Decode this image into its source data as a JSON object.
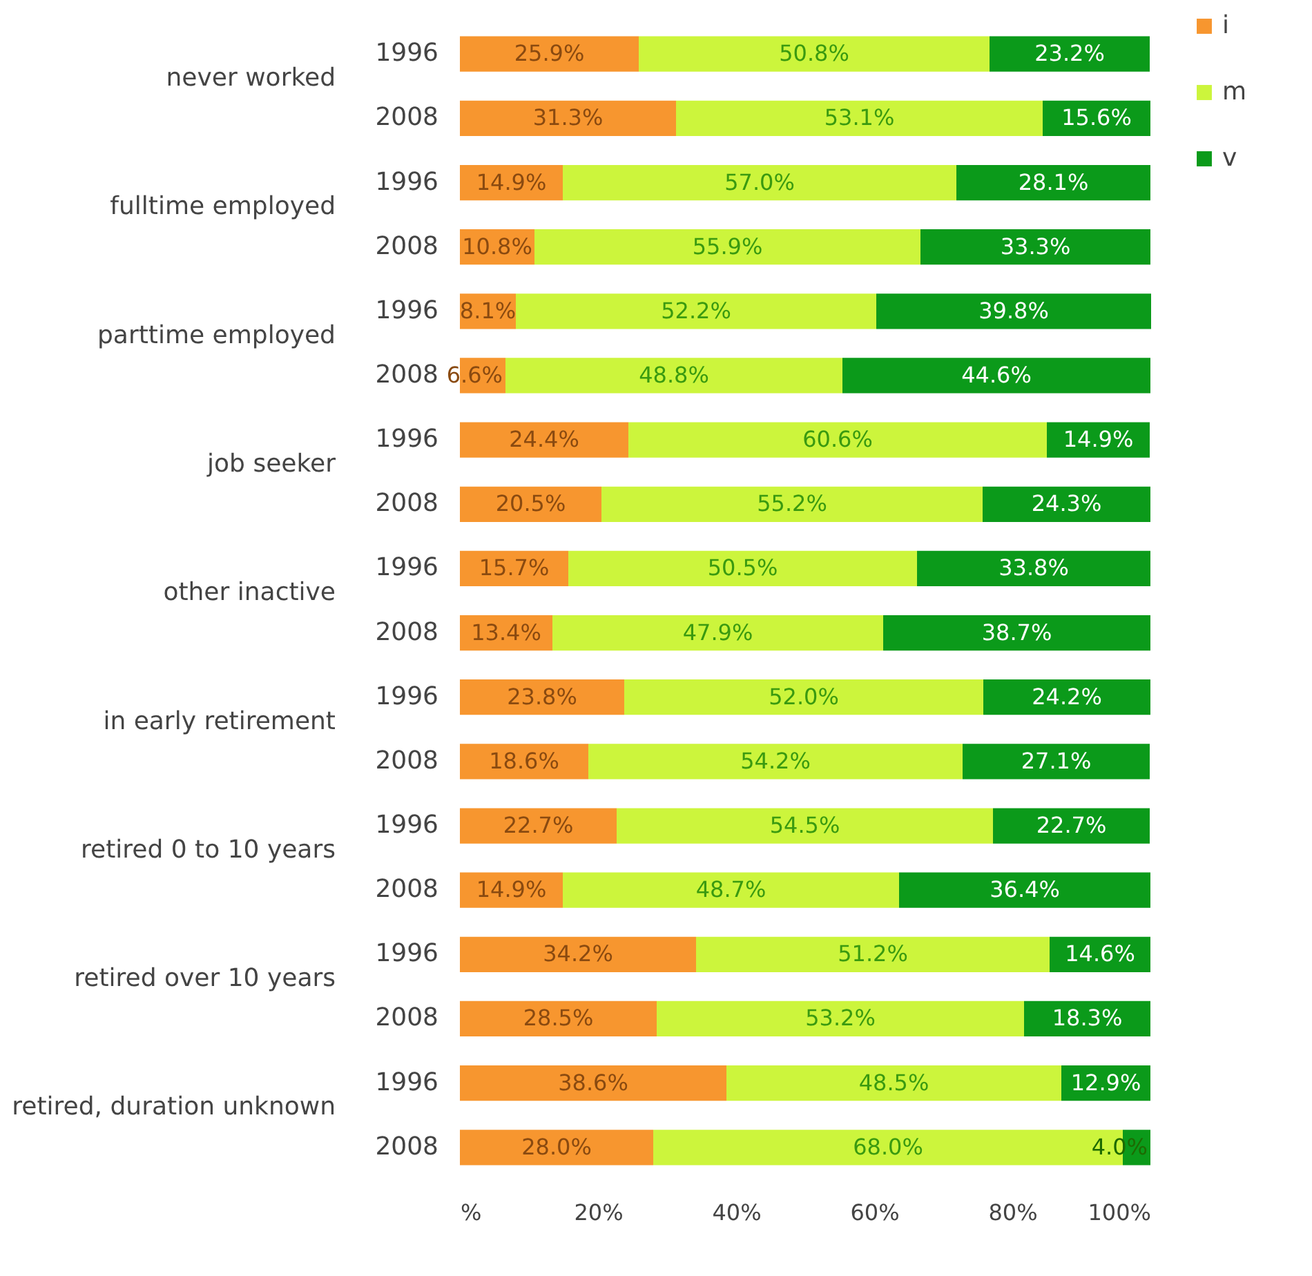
{
  "chart_data": {
    "type": "bar",
    "orientation": "horizontal",
    "stacked": true,
    "legend": "right",
    "grid": false,
    "categories": [
      "1996",
      "2008",
      "1996",
      "2008",
      "1996",
      "2008",
      "1996",
      "2008",
      "1996",
      "2008",
      "1996",
      "2008",
      "1996",
      "2008",
      "1996",
      "2008",
      "1996",
      "2008"
    ],
    "annotations": [
      "never worked",
      "fulltime employed",
      "parttime employed",
      "job seeker",
      "other inactive",
      "in early retirement",
      "retired 0 to 10 years",
      "retired over 10 years",
      "retired, duration unknown"
    ],
    "xlim": [
      0,
      100
    ],
    "xticks": [
      {
        "value": 0,
        "label": "%"
      },
      {
        "value": 20,
        "label": "20%"
      },
      {
        "value": 40,
        "label": "40%"
      },
      {
        "value": 60,
        "label": "60%"
      },
      {
        "value": 80,
        "label": "80%"
      },
      {
        "value": 100,
        "label": "100%"
      }
    ],
    "series": [
      {
        "name": "i",
        "color": "#f7962f",
        "values": [
          25.9,
          31.3,
          14.9,
          10.8,
          8.1,
          6.6,
          24.4,
          20.5,
          15.7,
          13.4,
          23.8,
          18.6,
          22.7,
          14.9,
          34.2,
          28.5,
          38.6,
          28.0
        ],
        "value_labels": [
          "25.9%",
          "31.3%",
          "14.9%",
          "10.8%",
          "8.1%",
          "6.6%",
          "24.4%",
          "20.5%",
          "15.7%",
          "13.4%",
          "23.8%",
          "18.6%",
          "22.7%",
          "14.9%",
          "34.2%",
          "28.5%",
          "38.6%",
          "28.0%"
        ]
      },
      {
        "name": "m",
        "color": "#ccf53c",
        "values": [
          50.8,
          53.1,
          57.0,
          55.9,
          52.2,
          48.8,
          60.6,
          55.2,
          50.5,
          47.9,
          52.0,
          54.2,
          54.5,
          48.7,
          51.2,
          53.2,
          48.5,
          68.0
        ],
        "value_labels": [
          "50.8%",
          "53.1%",
          "57.0%",
          "55.9%",
          "52.2%",
          "48.8%",
          "60.6%",
          "55.2%",
          "50.5%",
          "47.9%",
          "52.0%",
          "54.2%",
          "54.5%",
          "48.7%",
          "51.2%",
          "53.2%",
          "48.5%",
          "68.0%"
        ]
      },
      {
        "name": "v",
        "color": "#0b9a1a",
        "values": [
          23.2,
          15.6,
          28.1,
          33.3,
          39.8,
          44.6,
          14.9,
          24.3,
          33.8,
          38.7,
          24.2,
          27.1,
          22.7,
          36.4,
          14.6,
          18.3,
          12.9,
          4.0
        ],
        "value_labels": [
          "23.2%",
          "15.6%",
          "28.1%",
          "33.3%",
          "39.8%",
          "44.6%",
          "14.9%",
          "24.3%",
          "33.8%",
          "38.7%",
          "24.2%",
          "27.1%",
          "22.7%",
          "36.4%",
          "14.6%",
          "18.3%",
          "12.9%",
          "4.0%"
        ]
      }
    ]
  }
}
